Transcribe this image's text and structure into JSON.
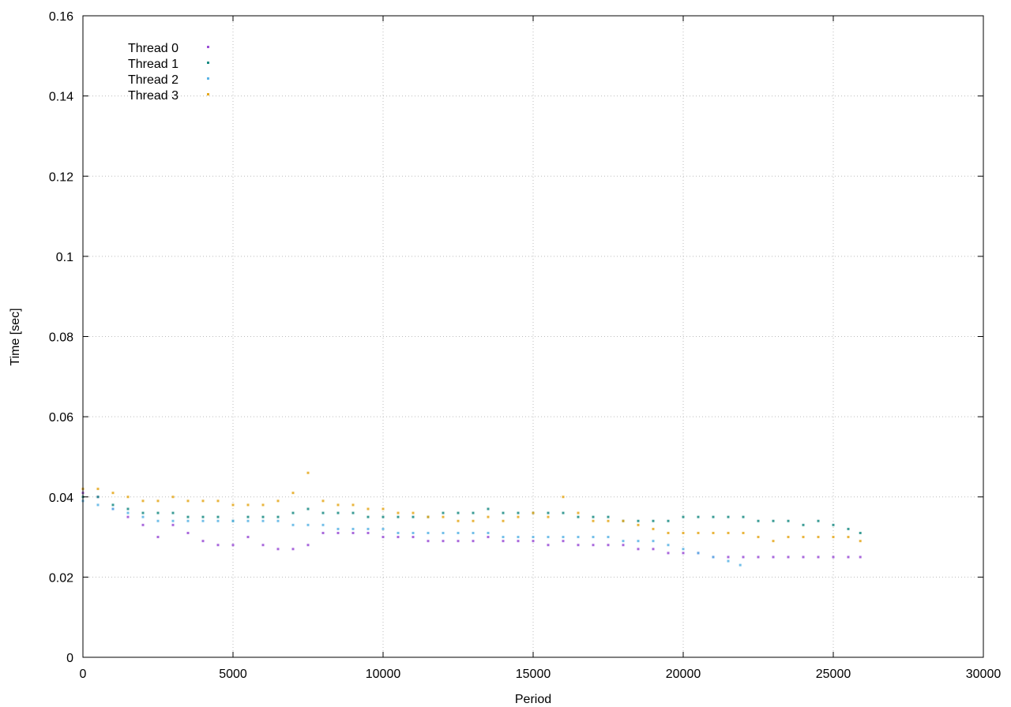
{
  "chart_data": {
    "type": "scatter",
    "title": "",
    "xlabel": "Period",
    "ylabel": "Time [sec]",
    "xlim": [
      0,
      30000
    ],
    "ylim": [
      0,
      0.16
    ],
    "x_ticks": [
      "0",
      "5000",
      "10000",
      "15000",
      "20000",
      "25000",
      "30000"
    ],
    "y_ticks": [
      "0",
      "0.02",
      "0.04",
      "0.06",
      "0.08",
      "0.1",
      "0.12",
      "0.14",
      "0.16"
    ],
    "x_tick_values": [
      0,
      5000,
      10000,
      15000,
      20000,
      25000,
      30000
    ],
    "y_tick_values": [
      0,
      0.02,
      0.04,
      0.06,
      0.08,
      0.1,
      0.12,
      0.14,
      0.16
    ],
    "grid": true,
    "legend_position": "top-left",
    "series": [
      {
        "name": "Thread 0",
        "color": "#9b4fd6",
        "x": [
          0,
          500,
          1000,
          1500,
          2000,
          2500,
          3000,
          3500,
          4000,
          4500,
          5000,
          5500,
          6000,
          6500,
          7000,
          7500,
          8000,
          8500,
          9000,
          9500,
          10000,
          10500,
          11000,
          11500,
          12000,
          12500,
          13000,
          13500,
          14000,
          14500,
          15000,
          15500,
          16000,
          16500,
          17000,
          17500,
          18000,
          18500,
          19000,
          19500,
          20000,
          20500,
          21000,
          21500,
          22000,
          22500,
          23000,
          23500,
          24000,
          24500,
          25000,
          25500,
          25900
        ],
        "y": [
          0.041,
          0.04,
          0.037,
          0.035,
          0.033,
          0.03,
          0.033,
          0.031,
          0.029,
          0.028,
          0.028,
          0.03,
          0.028,
          0.027,
          0.027,
          0.028,
          0.031,
          0.031,
          0.031,
          0.031,
          0.03,
          0.03,
          0.03,
          0.029,
          0.029,
          0.029,
          0.029,
          0.03,
          0.029,
          0.029,
          0.029,
          0.028,
          0.029,
          0.028,
          0.028,
          0.028,
          0.028,
          0.027,
          0.027,
          0.026,
          0.026,
          0.026,
          0.025,
          0.025,
          0.025,
          0.025,
          0.025,
          0.025,
          0.025,
          0.025,
          0.025,
          0.025,
          0.025
        ]
      },
      {
        "name": "Thread 1",
        "color": "#1a8c84",
        "x": [
          0,
          500,
          1000,
          1500,
          2000,
          2500,
          3000,
          3500,
          4000,
          4500,
          5000,
          5500,
          6000,
          6500,
          7000,
          7500,
          8000,
          8500,
          9000,
          9500,
          10000,
          10500,
          11000,
          11500,
          12000,
          12500,
          13000,
          13500,
          14000,
          14500,
          15000,
          15500,
          16000,
          16500,
          17000,
          17500,
          18000,
          18500,
          19000,
          19500,
          20000,
          20500,
          21000,
          21500,
          22000,
          22500,
          23000,
          23500,
          24000,
          24500,
          25000,
          25500,
          25900
        ],
        "y": [
          0.04,
          0.04,
          0.038,
          0.037,
          0.036,
          0.036,
          0.036,
          0.035,
          0.035,
          0.035,
          0.034,
          0.035,
          0.035,
          0.035,
          0.036,
          0.037,
          0.036,
          0.036,
          0.036,
          0.035,
          0.035,
          0.035,
          0.035,
          0.035,
          0.036,
          0.036,
          0.036,
          0.037,
          0.036,
          0.036,
          0.036,
          0.036,
          0.036,
          0.035,
          0.035,
          0.035,
          0.034,
          0.034,
          0.034,
          0.034,
          0.035,
          0.035,
          0.035,
          0.035,
          0.035,
          0.034,
          0.034,
          0.034,
          0.033,
          0.034,
          0.033,
          0.032,
          0.031
        ]
      },
      {
        "name": "Thread 2",
        "color": "#5ab4e5",
        "x": [
          0,
          500,
          1000,
          1500,
          2000,
          2500,
          3000,
          3500,
          4000,
          4500,
          5000,
          5500,
          6000,
          6500,
          7000,
          7500,
          8000,
          8500,
          9000,
          9500,
          10000,
          10500,
          11000,
          11500,
          12000,
          12500,
          13000,
          13500,
          14000,
          14500,
          15000,
          15500,
          16000,
          16500,
          17000,
          17500,
          18000,
          18500,
          19000,
          19500,
          20000,
          20500,
          21000,
          21500,
          21900
        ],
        "y": [
          0.039,
          0.038,
          0.037,
          0.036,
          0.035,
          0.034,
          0.034,
          0.034,
          0.034,
          0.034,
          0.034,
          0.034,
          0.034,
          0.034,
          0.033,
          0.033,
          0.033,
          0.032,
          0.032,
          0.032,
          0.032,
          0.031,
          0.031,
          0.031,
          0.031,
          0.031,
          0.031,
          0.031,
          0.03,
          0.03,
          0.03,
          0.03,
          0.03,
          0.03,
          0.03,
          0.03,
          0.029,
          0.029,
          0.029,
          0.028,
          0.027,
          0.026,
          0.025,
          0.024,
          0.023
        ]
      },
      {
        "name": "Thread 3",
        "color": "#e5a81c",
        "x": [
          0,
          500,
          1000,
          1500,
          2000,
          2500,
          3000,
          3500,
          4000,
          4500,
          5000,
          5500,
          6000,
          6500,
          7000,
          7500,
          8000,
          8500,
          9000,
          9500,
          10000,
          10500,
          11000,
          11500,
          12000,
          12500,
          13000,
          13500,
          14000,
          14500,
          15000,
          15500,
          16000,
          16500,
          17000,
          17500,
          18000,
          18500,
          19000,
          19500,
          20000,
          20500,
          21000,
          21500,
          22000,
          22500,
          23000,
          23500,
          24000,
          24500,
          25000,
          25500,
          25900
        ],
        "y": [
          0.042,
          0.042,
          0.041,
          0.04,
          0.039,
          0.039,
          0.04,
          0.039,
          0.039,
          0.039,
          0.038,
          0.038,
          0.038,
          0.039,
          0.041,
          0.046,
          0.039,
          0.038,
          0.038,
          0.037,
          0.037,
          0.036,
          0.036,
          0.035,
          0.035,
          0.034,
          0.034,
          0.035,
          0.034,
          0.035,
          0.036,
          0.035,
          0.04,
          0.036,
          0.034,
          0.034,
          0.034,
          0.033,
          0.032,
          0.031,
          0.031,
          0.031,
          0.031,
          0.031,
          0.031,
          0.03,
          0.029,
          0.03,
          0.03,
          0.03,
          0.03,
          0.03,
          0.029
        ]
      }
    ]
  }
}
